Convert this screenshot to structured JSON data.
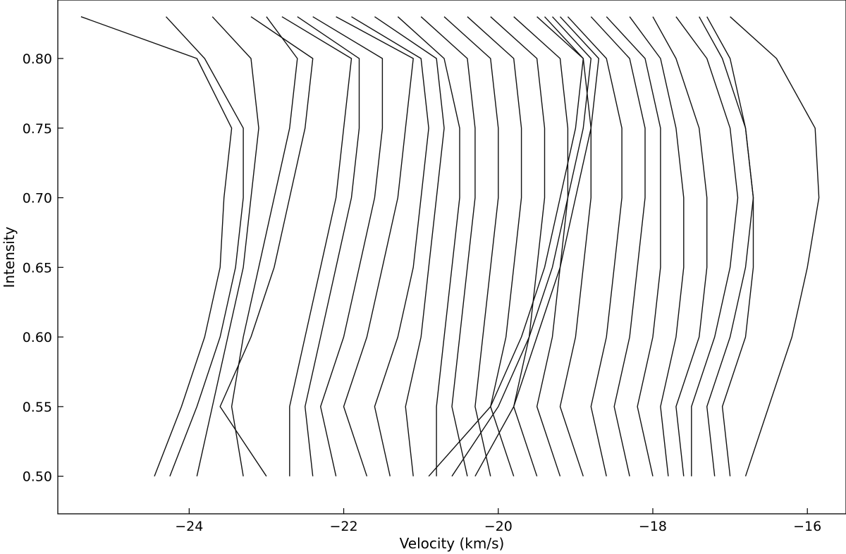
{
  "chart_data": {
    "type": "line",
    "title": "",
    "xlabel": "Velocity (km/s)",
    "ylabel": "Intensity",
    "xlim": [
      -25.7,
      -15.5
    ],
    "ylim": [
      0.473,
      0.842
    ],
    "xticks": [
      -24,
      -22,
      -20,
      -18,
      -16
    ],
    "xtick_labels": [
      "−24",
      "−22",
      "−20",
      "−18",
      "−16"
    ],
    "yticks": [
      0.5,
      0.55,
      0.6,
      0.65,
      0.7,
      0.75,
      0.8
    ],
    "ytick_labels": [
      "0.50",
      "0.55",
      "0.60",
      "0.65",
      "0.70",
      "0.75",
      "0.80"
    ],
    "grid": false,
    "legend": "none",
    "color": "#111111",
    "y": [
      0.5,
      0.55,
      0.6,
      0.65,
      0.7,
      0.75,
      0.8,
      0.83
    ],
    "series": [
      {
        "values": [
          -24.45,
          -24.1,
          -23.8,
          -23.6,
          -23.55,
          -23.45,
          -23.9,
          -25.4
        ]
      },
      {
        "values": [
          -24.25,
          -23.9,
          -23.6,
          -23.4,
          -23.3,
          -23.3,
          -23.8,
          -24.3
        ]
      },
      {
        "values": [
          -23.3,
          -23.45,
          -23.3,
          -23.1,
          -22.9,
          -22.7,
          -22.6,
          -23.0
        ]
      },
      {
        "values": [
          -23.0,
          -23.6,
          -23.2,
          -22.9,
          -22.7,
          -22.5,
          -22.4,
          -23.2
        ]
      },
      {
        "values": [
          -22.7,
          -22.7,
          -22.5,
          -22.3,
          -22.1,
          -22.0,
          -21.9,
          -22.8
        ]
      },
      {
        "values": [
          -22.4,
          -22.5,
          -22.3,
          -22.1,
          -21.9,
          -21.8,
          -21.8,
          -22.6
        ]
      },
      {
        "values": [
          -22.1,
          -22.3,
          -22.0,
          -21.8,
          -21.6,
          -21.5,
          -21.5,
          -22.4
        ]
      },
      {
        "values": [
          -21.7,
          -22.0,
          -21.7,
          -21.5,
          -21.3,
          -21.2,
          -21.1,
          -22.1
        ]
      },
      {
        "values": [
          -21.4,
          -21.6,
          -21.3,
          -21.1,
          -21.0,
          -20.9,
          -21.0,
          -21.9
        ]
      },
      {
        "values": [
          -21.1,
          -21.2,
          -21.0,
          -20.9,
          -20.8,
          -20.7,
          -20.8,
          -21.6
        ]
      },
      {
        "values": [
          -20.8,
          -20.8,
          -20.7,
          -20.6,
          -20.5,
          -20.5,
          -20.7,
          -21.3
        ]
      },
      {
        "values": [
          -20.4,
          -20.6,
          -20.5,
          -20.4,
          -20.3,
          -20.3,
          -20.4,
          -21.0
        ]
      },
      {
        "values": [
          -20.1,
          -20.3,
          -20.2,
          -20.1,
          -20.0,
          -20.0,
          -20.1,
          -20.7
        ]
      },
      {
        "values": [
          -19.8,
          -20.1,
          -19.9,
          -19.8,
          -19.7,
          -19.7,
          -19.8,
          -20.4
        ]
      },
      {
        "values": [
          -19.5,
          -19.8,
          -19.6,
          -19.5,
          -19.4,
          -19.4,
          -19.5,
          -20.1
        ]
      },
      {
        "values": [
          -19.2,
          -19.5,
          -19.3,
          -19.2,
          -19.1,
          -19.1,
          -19.2,
          -19.8
        ]
      },
      {
        "values": [
          -18.9,
          -19.2,
          -19.0,
          -18.9,
          -18.8,
          -18.8,
          -18.9,
          -19.5
        ]
      },
      {
        "values": [
          -20.6,
          -20.0,
          -19.6,
          -19.3,
          -19.1,
          -18.9,
          -18.8,
          -19.3
        ]
      },
      {
        "values": [
          -20.9,
          -20.1,
          -19.7,
          -19.4,
          -19.2,
          -19.0,
          -18.9,
          -19.4
        ]
      },
      {
        "values": [
          -20.3,
          -19.8,
          -19.5,
          -19.2,
          -19.0,
          -18.8,
          -18.7,
          -19.2
        ]
      },
      {
        "values": [
          -18.6,
          -18.8,
          -18.6,
          -18.5,
          -18.4,
          -18.4,
          -18.6,
          -19.1
        ]
      },
      {
        "values": [
          -18.3,
          -18.5,
          -18.3,
          -18.2,
          -18.1,
          -18.1,
          -18.3,
          -18.8
        ]
      },
      {
        "values": [
          -18.0,
          -18.2,
          -18.0,
          -17.9,
          -17.9,
          -17.9,
          -18.1,
          -18.6
        ]
      },
      {
        "values": [
          -17.8,
          -17.9,
          -17.7,
          -17.6,
          -17.6,
          -17.7,
          -17.9,
          -18.3
        ]
      },
      {
        "values": [
          -17.6,
          -17.7,
          -17.4,
          -17.3,
          -17.3,
          -17.4,
          -17.7,
          -18.0
        ]
      },
      {
        "values": [
          -17.5,
          -17.5,
          -17.2,
          -17.0,
          -16.9,
          -17.0,
          -17.3,
          -17.7
        ]
      },
      {
        "values": [
          -17.2,
          -17.3,
          -17.0,
          -16.8,
          -16.7,
          -16.8,
          -17.1,
          -17.4
        ]
      },
      {
        "values": [
          -17.0,
          -17.1,
          -16.8,
          -16.7,
          -16.7,
          -16.8,
          -17.0,
          -17.3
        ]
      },
      {
        "values": [
          -16.8,
          -16.5,
          -16.2,
          -16.0,
          -15.85,
          -15.9,
          -16.4,
          -17.0
        ]
      },
      {
        "values": [
          -23.9,
          -23.7,
          -23.5,
          -23.3,
          -23.2,
          -23.1,
          -23.2,
          -23.7
        ]
      }
    ]
  }
}
